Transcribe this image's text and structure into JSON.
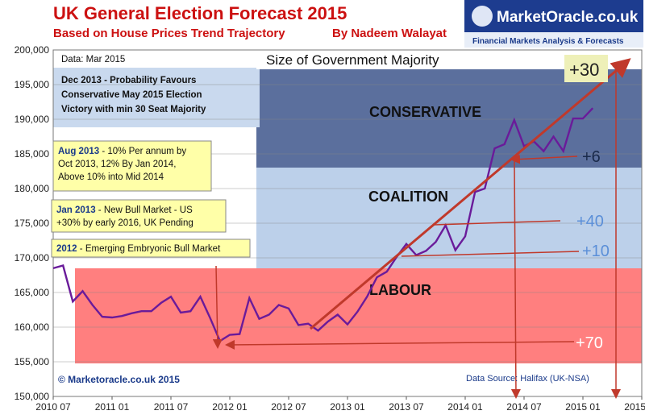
{
  "header": {
    "title": "UK General Election Forecast 2015",
    "subtitle_left": "Based on House Prices Trend Trajectory",
    "subtitle_right": "By Nadeem Walayat"
  },
  "logo": {
    "name": "MarketOracle.co.uk",
    "tagline": "Financial Markets Analysis & Forecasts"
  },
  "labels": {
    "data_date": "Data: Mar 2015",
    "majority_title": "Size of Government Majority",
    "conservative": "CONSERVATIVE",
    "coalition": "COALITION",
    "labour": "LABOUR",
    "copyright": "© Marketoracle.co.uk 2015",
    "source": "Data Source: Halifax (UK-NSA)"
  },
  "annotations": {
    "dec2013": [
      "Dec 2013 - Probability Favours",
      "Conservative May 2015 Election",
      "Victory with min 30 Seat Majority"
    ],
    "aug2013_lead": "Aug 2013",
    "aug2013": [
      " - 10% Per annum by",
      "Oct 2013, 12% By Jan 2014,",
      "Above 10% into Mid 2014"
    ],
    "jan2013_lead": "Jan 2013",
    "jan2013": [
      " - New Bull Market - US",
      "+30% by early 2016, UK Pending"
    ],
    "y2012_lead": "2012",
    "y2012": " - Emerging Embryonic Bull Market"
  },
  "majority_marks": {
    "plus30": "+30",
    "plus6": "+6",
    "plus40": "+40",
    "plus10": "+10",
    "plus70": "+70"
  },
  "colors": {
    "conservative_zone": "#5b6f9d",
    "coalition_zone": "#bcd0ea",
    "labour_zone": "#ff7f7f",
    "price_line": "#6a1b9a",
    "trend_arrow": "#c0392b",
    "title": "#cc1111",
    "annotation_box": "#ffffa8"
  },
  "chart_data": {
    "type": "line",
    "title": "UK General Election Forecast 2015",
    "xlabel": "",
    "ylabel": "",
    "x_start": "2010-07",
    "x_step": "1 month",
    "ylim": [
      150000,
      200000
    ],
    "yticks": [
      150000,
      155000,
      160000,
      165000,
      170000,
      175000,
      180000,
      185000,
      190000,
      195000,
      200000
    ],
    "ytick_labels": [
      "150,000",
      "155,000",
      "160,000",
      "165,000",
      "170,000",
      "175,000",
      "180,000",
      "185,000",
      "190,000",
      "195,000",
      "200,000"
    ],
    "xtick_labels": [
      "2010 07",
      "2011 01",
      "2011 07",
      "2012 01",
      "2012 07",
      "2013 01",
      "2013 07",
      "2014 01",
      "2014 07",
      "2015 01",
      "2015 07"
    ],
    "grid": true,
    "series": [
      {
        "name": "",
        "values": [
          168500,
          168900,
          163700,
          165200,
          163200,
          161500,
          161400,
          161600,
          162000,
          162300,
          162300,
          163500,
          164400,
          162100,
          162300,
          164400,
          161300,
          158000,
          158900,
          159000,
          164200,
          161200,
          161800,
          163200,
          162700,
          160300,
          160500,
          159500,
          160800,
          161800,
          160400,
          162200,
          164400,
          167200,
          168000,
          170100,
          172000,
          170400,
          171000,
          172300,
          174700,
          171100,
          173100,
          179500,
          180000,
          185800,
          186400,
          189900,
          186100,
          186800,
          185400,
          187500,
          185400,
          190100,
          190100,
          191600
        ]
      }
    ]
  }
}
